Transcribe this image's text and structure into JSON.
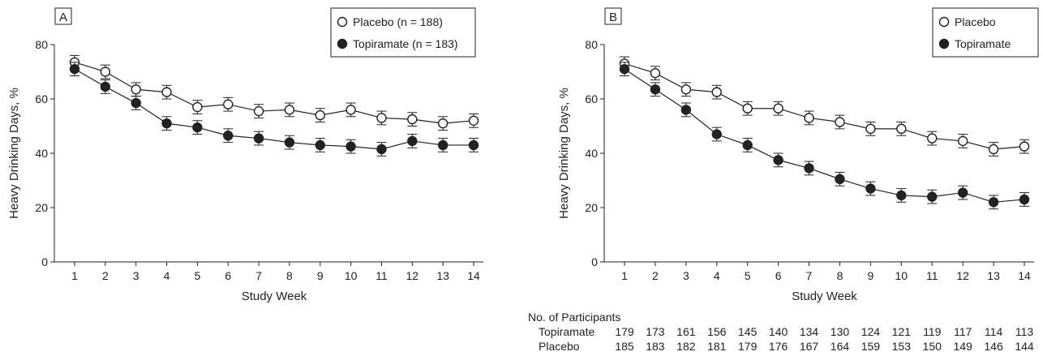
{
  "chart_data": [
    {
      "panel_label": "A",
      "type": "line",
      "xlabel": "Study Week",
      "ylabel": "Heavy Drinking Days, %",
      "x": [
        1,
        2,
        3,
        4,
        5,
        6,
        7,
        8,
        9,
        10,
        11,
        12,
        13,
        14
      ],
      "ylim": [
        0,
        80
      ],
      "yticks": [
        0,
        20,
        40,
        60,
        80
      ],
      "legend_position": "top-right",
      "error_bar_halfwidth": 2.5,
      "series": [
        {
          "name": "Placebo (n = 188)",
          "marker": "open-circle",
          "values": [
            73.5,
            70,
            63.5,
            62.5,
            57,
            58,
            55.5,
            56,
            54,
            56,
            53,
            52.5,
            51,
            52
          ]
        },
        {
          "name": "Topiramate (n = 183)",
          "marker": "filled-circle",
          "values": [
            71,
            64.5,
            58.5,
            51,
            49.5,
            46.5,
            45.5,
            44,
            43,
            42.5,
            41.5,
            44.5,
            43,
            43
          ]
        }
      ]
    },
    {
      "panel_label": "B",
      "type": "line",
      "xlabel": "Study Week",
      "ylabel": "Heavy Drinking Days, %",
      "x": [
        1,
        2,
        3,
        4,
        5,
        6,
        7,
        8,
        9,
        10,
        11,
        12,
        13,
        14
      ],
      "ylim": [
        0,
        80
      ],
      "yticks": [
        0,
        20,
        40,
        60,
        80
      ],
      "legend_position": "top-right",
      "error_bar_halfwidth": 2.5,
      "series": [
        {
          "name": "Placebo",
          "marker": "open-circle",
          "values": [
            73,
            69.5,
            63.5,
            62.5,
            56.5,
            56.5,
            53,
            51.5,
            49,
            49,
            45.5,
            44.5,
            41.5,
            42.5
          ]
        },
        {
          "name": "Topiramate",
          "marker": "filled-circle",
          "values": [
            71,
            63.5,
            56,
            47,
            43,
            37.5,
            34.5,
            30.5,
            27,
            24.5,
            24,
            25.5,
            22,
            23
          ]
        }
      ]
    }
  ],
  "participants_table": {
    "title": "No. of Participants",
    "rows": [
      {
        "label": "Topiramate",
        "values": [
          179,
          173,
          161,
          156,
          145,
          140,
          134,
          130,
          124,
          121,
          119,
          117,
          114,
          113
        ]
      },
      {
        "label": "Placebo",
        "values": [
          185,
          183,
          182,
          181,
          179,
          176,
          167,
          164,
          159,
          153,
          150,
          149,
          146,
          144
        ]
      }
    ]
  }
}
